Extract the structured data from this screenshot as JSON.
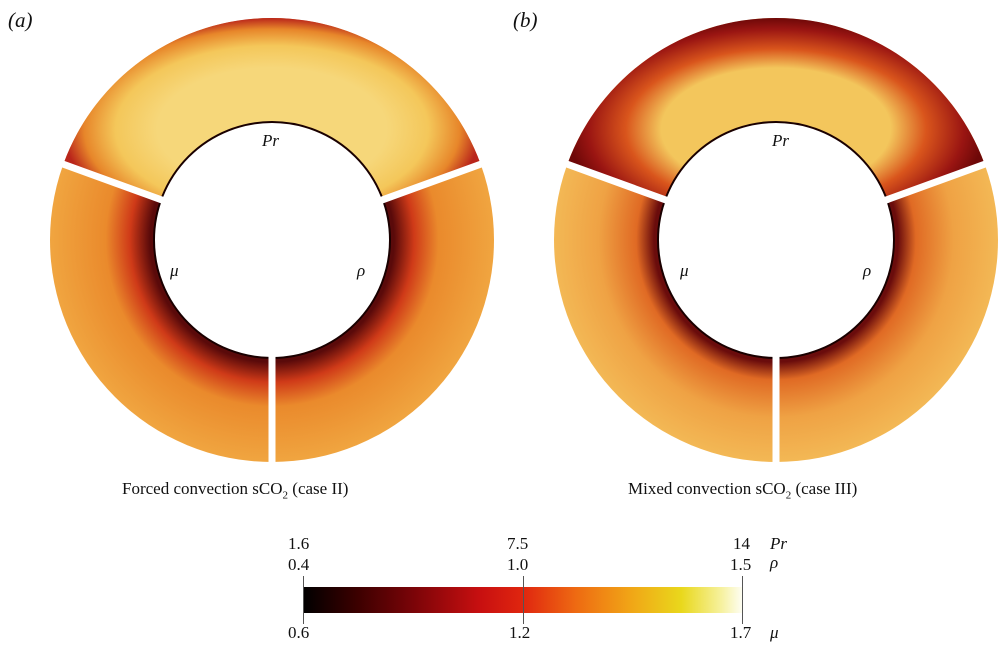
{
  "panels": [
    {
      "label": "(a)",
      "caption_pre": "Forced convection sCO",
      "caption_sub": "2",
      "caption_post": " (case II)",
      "sector_labels": [
        "Pr",
        "μ",
        "ρ"
      ]
    },
    {
      "label": "(b)",
      "caption_pre": "Mixed convection sCO",
      "caption_sub": "2",
      "caption_post": " (case III)",
      "sector_labels": [
        "Pr",
        "μ",
        "ρ"
      ]
    }
  ],
  "colorbar": {
    "variables": [
      "Pr",
      "ρ",
      "μ"
    ],
    "Pr_ticks": [
      "1.6",
      "7.5",
      "14"
    ],
    "rho_ticks": [
      "0.4",
      "1.0",
      "1.5"
    ],
    "mu_ticks": [
      "0.6",
      "1.2",
      "1.7"
    ],
    "colors": [
      "#000000",
      "#7a0408",
      "#e0260f",
      "#f1a316",
      "#fefef6"
    ]
  }
}
